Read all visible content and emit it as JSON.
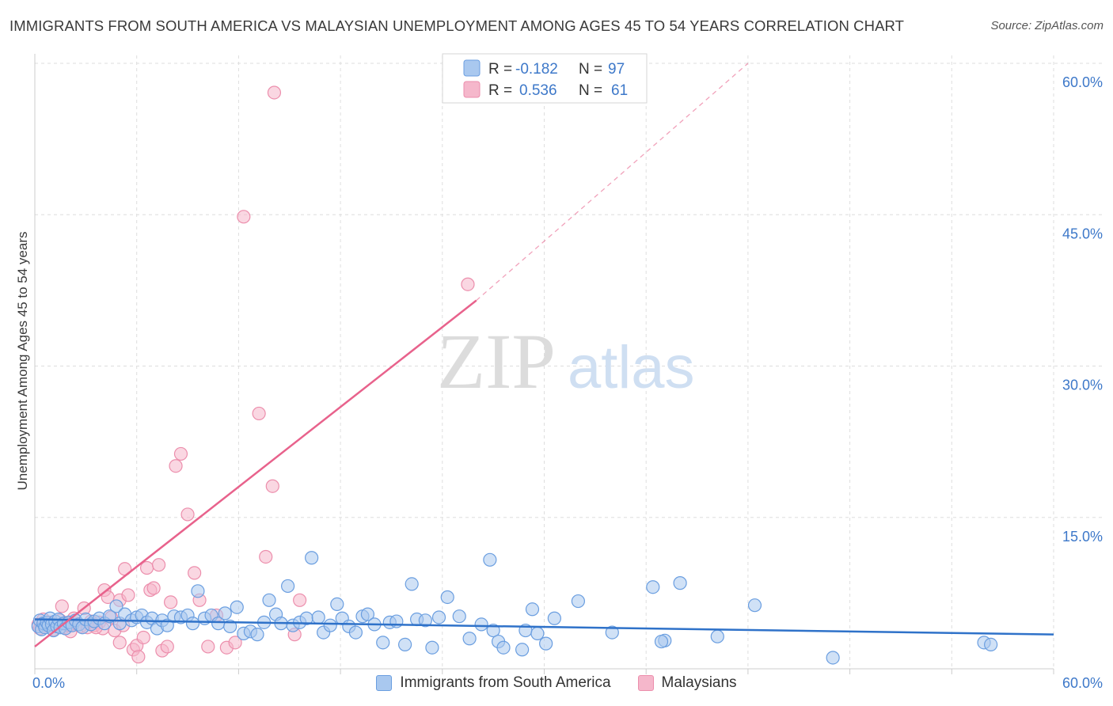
{
  "title": "IMMIGRANTS FROM SOUTH AMERICA VS MALAYSIAN UNEMPLOYMENT AMONG AGES 45 TO 54 YEARS CORRELATION CHART",
  "source": "Source: ZipAtlas.com",
  "watermark": {
    "part1": "ZIP",
    "part2": "atlas"
  },
  "colors": {
    "blue_fill": "#a9c8ef",
    "blue_stroke": "#6a9ee0",
    "blue_line": "#2f72c9",
    "pink_fill": "#f5b7cb",
    "pink_stroke": "#ec8eac",
    "pink_line": "#e8628c",
    "axis_label": "#3d78c9",
    "grid": "#dedede"
  },
  "legend_top": [
    {
      "r_label": "R =",
      "r_value": "-0.182",
      "n_label": "N =",
      "n_value": "97"
    },
    {
      "r_label": "R =",
      "r_value": "0.536",
      "n_label": "N =",
      "n_value": "61"
    }
  ],
  "chart_data": {
    "type": "scatter",
    "title": "IMMIGRANTS FROM SOUTH AMERICA VS MALAYSIAN UNEMPLOYMENT AMONG AGES 45 TO 54 YEARS CORRELATION CHART",
    "xlabel": "",
    "ylabel": "Unemployment Among Ages 45 to 54 years",
    "xlim": [
      0,
      60
    ],
    "ylim": [
      0,
      60
    ],
    "x_tick_labels": [
      "0.0%",
      "60.0%"
    ],
    "y_ticks": [
      15,
      30,
      45,
      60
    ],
    "y_tick_labels": [
      "15.0%",
      "30.0%",
      "45.0%",
      "60.0%"
    ],
    "legend_position": "bottom-center",
    "series": [
      {
        "name": "Immigrants from South America",
        "color": "blue",
        "r": -0.182,
        "n": 97,
        "trend": {
          "x0": 0,
          "y0": 4.9,
          "x1": 60,
          "y1": 3.4
        },
        "points": [
          [
            0.2,
            4.2
          ],
          [
            0.3,
            4.8
          ],
          [
            0.4,
            3.9
          ],
          [
            0.5,
            4.5
          ],
          [
            0.6,
            4.1
          ],
          [
            0.7,
            4.6
          ],
          [
            0.8,
            4.3
          ],
          [
            0.9,
            5.0
          ],
          [
            1.0,
            4.4
          ],
          [
            1.1,
            3.8
          ],
          [
            1.2,
            4.7
          ],
          [
            1.3,
            4.2
          ],
          [
            1.4,
            4.9
          ],
          [
            1.5,
            4.1
          ],
          [
            1.7,
            4.5
          ],
          [
            1.8,
            4.0
          ],
          [
            2.0,
            4.6
          ],
          [
            2.2,
            4.3
          ],
          [
            2.4,
            4.8
          ],
          [
            2.6,
            4.4
          ],
          [
            2.8,
            4.1
          ],
          [
            3.0,
            4.9
          ],
          [
            3.3,
            4.4
          ],
          [
            3.5,
            4.7
          ],
          [
            3.8,
            5.0
          ],
          [
            4.1,
            4.5
          ],
          [
            4.4,
            5.2
          ],
          [
            4.8,
            6.2
          ],
          [
            5.0,
            4.5
          ],
          [
            5.3,
            5.4
          ],
          [
            5.7,
            4.8
          ],
          [
            6.0,
            5.1
          ],
          [
            6.3,
            5.3
          ],
          [
            6.6,
            4.6
          ],
          [
            6.9,
            5.0
          ],
          [
            7.2,
            4.0
          ],
          [
            7.5,
            4.8
          ],
          [
            7.8,
            4.3
          ],
          [
            8.2,
            5.2
          ],
          [
            8.6,
            5.1
          ],
          [
            9.0,
            5.3
          ],
          [
            9.3,
            4.5
          ],
          [
            9.6,
            7.7
          ],
          [
            10.0,
            5.0
          ],
          [
            10.4,
            5.3
          ],
          [
            10.8,
            4.5
          ],
          [
            11.2,
            5.5
          ],
          [
            11.5,
            4.2
          ],
          [
            11.9,
            6.1
          ],
          [
            12.3,
            3.5
          ],
          [
            12.7,
            3.7
          ],
          [
            13.1,
            3.4
          ],
          [
            13.5,
            4.6
          ],
          [
            13.8,
            6.8
          ],
          [
            14.2,
            5.4
          ],
          [
            14.5,
            4.5
          ],
          [
            14.9,
            8.2
          ],
          [
            15.2,
            4.3
          ],
          [
            15.6,
            4.6
          ],
          [
            16.0,
            5.0
          ],
          [
            16.3,
            11.0
          ],
          [
            16.7,
            5.1
          ],
          [
            17.0,
            3.6
          ],
          [
            17.4,
            4.3
          ],
          [
            17.8,
            6.4
          ],
          [
            18.1,
            5.0
          ],
          [
            18.5,
            4.2
          ],
          [
            18.9,
            3.6
          ],
          [
            19.3,
            5.2
          ],
          [
            19.6,
            5.4
          ],
          [
            20.0,
            4.4
          ],
          [
            20.5,
            2.6
          ],
          [
            20.9,
            4.6
          ],
          [
            21.3,
            4.7
          ],
          [
            21.8,
            2.4
          ],
          [
            22.2,
            8.4
          ],
          [
            22.5,
            4.9
          ],
          [
            23.0,
            4.8
          ],
          [
            23.4,
            2.1
          ],
          [
            23.8,
            5.1
          ],
          [
            24.3,
            7.1
          ],
          [
            25.0,
            5.2
          ],
          [
            25.6,
            3.0
          ],
          [
            26.3,
            4.4
          ],
          [
            26.8,
            10.8
          ],
          [
            27.0,
            3.8
          ],
          [
            27.3,
            2.7
          ],
          [
            27.6,
            2.1
          ],
          [
            28.7,
            1.9
          ],
          [
            28.9,
            3.8
          ],
          [
            29.3,
            5.9
          ],
          [
            29.6,
            3.5
          ],
          [
            30.1,
            2.5
          ],
          [
            30.6,
            5.0
          ],
          [
            32.0,
            6.7
          ],
          [
            34.0,
            3.6
          ],
          [
            36.4,
            8.1
          ],
          [
            37.1,
            2.8
          ],
          [
            38.0,
            8.5
          ],
          [
            40.2,
            3.2
          ],
          [
            42.4,
            6.3
          ],
          [
            47.0,
            1.1
          ],
          [
            55.9,
            2.6
          ],
          [
            56.3,
            2.4
          ],
          [
            36.9,
            2.7
          ]
        ]
      },
      {
        "name": "Malaysians",
        "color": "pink",
        "r": 0.536,
        "n": 61,
        "trend": {
          "x0": 0,
          "y0": 2.2,
          "x1": 26,
          "y1": 36.5,
          "x_dash_end": 42,
          "y_dash_end": 60
        },
        "points": [
          [
            0.2,
            4.4
          ],
          [
            0.3,
            4.0
          ],
          [
            0.5,
            4.9
          ],
          [
            0.7,
            4.2
          ],
          [
            0.9,
            4.6
          ],
          [
            1.1,
            3.9
          ],
          [
            1.3,
            4.3
          ],
          [
            1.5,
            4.8
          ],
          [
            1.6,
            6.2
          ],
          [
            1.7,
            4.1
          ],
          [
            1.9,
            4.5
          ],
          [
            2.1,
            3.7
          ],
          [
            2.3,
            5.0
          ],
          [
            2.5,
            4.4
          ],
          [
            2.7,
            4.2
          ],
          [
            2.9,
            6.0
          ],
          [
            3.1,
            4.1
          ],
          [
            3.3,
            4.7
          ],
          [
            3.5,
            4.3
          ],
          [
            3.8,
            4.6
          ],
          [
            4.0,
            4.0
          ],
          [
            4.1,
            7.8
          ],
          [
            4.3,
            7.1
          ],
          [
            4.5,
            5.1
          ],
          [
            4.7,
            3.8
          ],
          [
            5.0,
            2.6
          ],
          [
            5.0,
            6.8
          ],
          [
            5.2,
            4.3
          ],
          [
            5.3,
            9.9
          ],
          [
            5.5,
            7.3
          ],
          [
            5.8,
            1.9
          ],
          [
            6.0,
            2.3
          ],
          [
            6.1,
            1.2
          ],
          [
            6.4,
            3.1
          ],
          [
            6.6,
            10.0
          ],
          [
            6.8,
            7.8
          ],
          [
            7.0,
            8.0
          ],
          [
            7.3,
            10.3
          ],
          [
            7.5,
            1.8
          ],
          [
            7.8,
            2.2
          ],
          [
            8.0,
            6.6
          ],
          [
            8.3,
            20.1
          ],
          [
            8.6,
            21.3
          ],
          [
            9.0,
            15.3
          ],
          [
            9.4,
            9.5
          ],
          [
            9.7,
            6.8
          ],
          [
            10.2,
            2.2
          ],
          [
            10.7,
            5.3
          ],
          [
            11.3,
            2.1
          ],
          [
            11.8,
            2.6
          ],
          [
            12.3,
            44.8
          ],
          [
            13.2,
            25.3
          ],
          [
            13.6,
            11.1
          ],
          [
            14.0,
            18.1
          ],
          [
            14.1,
            57.1
          ],
          [
            15.3,
            3.4
          ],
          [
            15.6,
            6.8
          ],
          [
            25.5,
            38.1
          ],
          [
            1.8,
            4.5
          ],
          [
            2.0,
            4.3
          ],
          [
            3.6,
            4.1
          ]
        ]
      }
    ]
  }
}
